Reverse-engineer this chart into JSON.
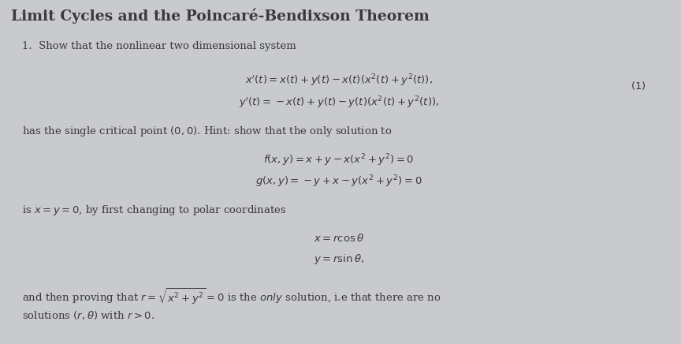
{
  "title": "Limit Cycles and the Poincaré-Bendixson Theorem",
  "background_color": "#c8cace",
  "text_color": "#3a3a3a",
  "fig_width": 8.64,
  "fig_height": 4.36,
  "title_fontsize": 13.5,
  "body_fontsize": 9.5,
  "math_fontsize": 9.5
}
